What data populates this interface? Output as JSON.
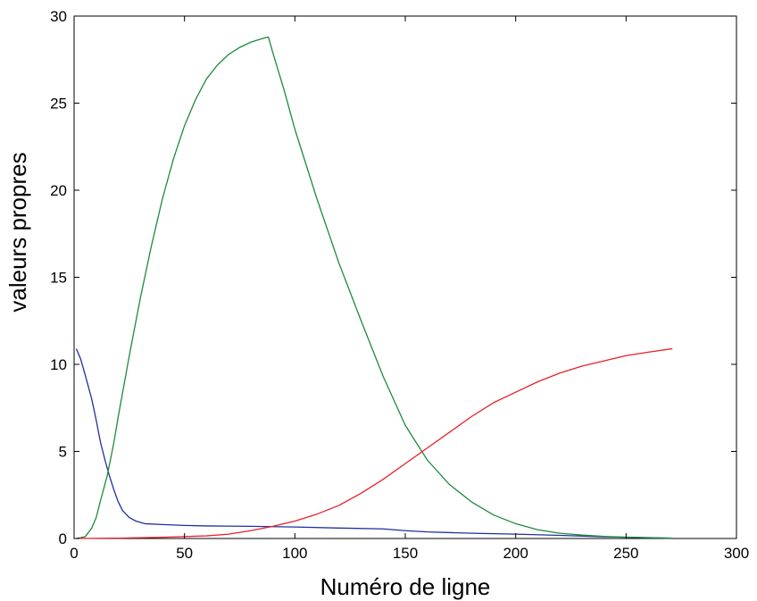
{
  "chart_data": {
    "type": "line",
    "title": "",
    "xlabel": "Numéro de ligne",
    "ylabel": "valeurs propres",
    "xlim": [
      0,
      300
    ],
    "ylim": [
      0,
      30
    ],
    "xticks": [
      0,
      50,
      100,
      150,
      200,
      250,
      300
    ],
    "yticks": [
      0,
      5,
      10,
      15,
      20,
      25,
      30
    ],
    "xtick_labels": [
      "0",
      "50",
      "100",
      "150",
      "200",
      "250",
      "300"
    ],
    "ytick_labels": [
      "0",
      "5",
      "10",
      "15",
      "20",
      "25",
      "30"
    ],
    "grid": false,
    "legend": "none",
    "series": [
      {
        "color": "#1f2f9f",
        "x": [
          1,
          3,
          5,
          8,
          10,
          12,
          14,
          16,
          18,
          20,
          22,
          25,
          28,
          32,
          40,
          50,
          60,
          80,
          100,
          120,
          140,
          150,
          160,
          180,
          200,
          220,
          240,
          260,
          271
        ],
        "y": [
          10.9,
          10.3,
          9.4,
          8.0,
          6.8,
          5.5,
          4.5,
          3.6,
          2.8,
          2.1,
          1.6,
          1.2,
          1.0,
          0.85,
          0.8,
          0.75,
          0.72,
          0.7,
          0.66,
          0.6,
          0.55,
          0.45,
          0.38,
          0.3,
          0.25,
          0.18,
          0.1,
          0.05,
          0.02
        ]
      },
      {
        "color": "#1e8a3c",
        "x": [
          1,
          5,
          8,
          10,
          12,
          15,
          18,
          20,
          25,
          30,
          35,
          40,
          45,
          50,
          55,
          60,
          65,
          70,
          75,
          80,
          85,
          88,
          90,
          95,
          100,
          110,
          120,
          130,
          140,
          150,
          160,
          170,
          180,
          190,
          200,
          210,
          220,
          230,
          240,
          250,
          260,
          271
        ],
        "y": [
          0.0,
          0.1,
          0.6,
          1.2,
          2.2,
          3.6,
          5.5,
          7.0,
          10.5,
          13.8,
          16.8,
          19.5,
          21.8,
          23.7,
          25.2,
          26.4,
          27.2,
          27.8,
          28.2,
          28.5,
          28.7,
          28.8,
          27.9,
          25.8,
          23.5,
          19.5,
          15.8,
          12.5,
          9.3,
          6.5,
          4.5,
          3.1,
          2.1,
          1.35,
          0.85,
          0.5,
          0.3,
          0.2,
          0.12,
          0.07,
          0.04,
          0.02
        ]
      },
      {
        "color": "#e8202a",
        "x": [
          1,
          20,
          40,
          60,
          70,
          80,
          90,
          100,
          110,
          120,
          130,
          140,
          150,
          160,
          170,
          180,
          190,
          200,
          210,
          220,
          230,
          240,
          250,
          260,
          271
        ],
        "y": [
          0.0,
          0.02,
          0.07,
          0.15,
          0.25,
          0.45,
          0.7,
          1.0,
          1.4,
          1.9,
          2.6,
          3.4,
          4.3,
          5.2,
          6.1,
          7.0,
          7.8,
          8.4,
          9.0,
          9.5,
          9.9,
          10.2,
          10.5,
          10.7,
          10.9
        ]
      }
    ]
  }
}
